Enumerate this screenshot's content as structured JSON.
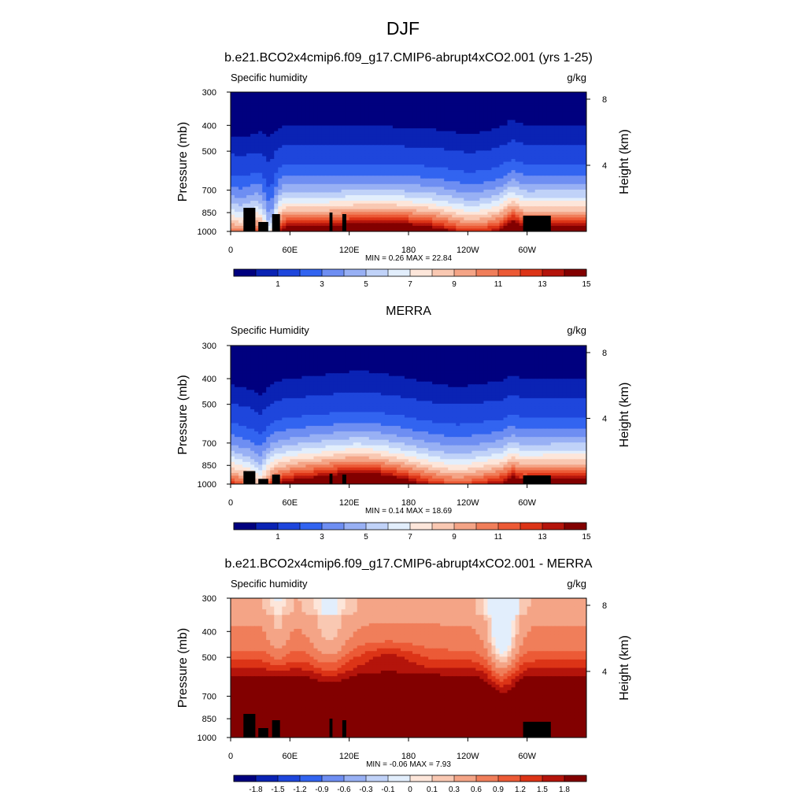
{
  "figure": {
    "title": "DJF"
  },
  "chart_data": [
    {
      "type": "heatmap",
      "title": "b.e21.BCO2x4cmip6.f09_g17.CMIP6-abrupt4xCO2.001 (yrs 1-25)",
      "left_label": "Specific humidity",
      "right_label": "g/kg",
      "ylabel": "Pressure (mb)",
      "ylabel_right": "Height (km)",
      "x_ticks": [
        "0",
        "60E",
        "120E",
        "180",
        "120W",
        "60W"
      ],
      "x_tick_values": [
        0,
        60,
        120,
        180,
        240,
        300
      ],
      "xlim": [
        0,
        360
      ],
      "y_ticks": [
        "300",
        "400",
        "500",
        "700",
        "850",
        "1000"
      ],
      "y_tick_values": [
        300,
        400,
        500,
        700,
        850,
        1000
      ],
      "ylim": [
        1000,
        300
      ],
      "right_ticks": [
        "8",
        "4"
      ],
      "right_tick_values": [
        8,
        4
      ],
      "stats": "MIN =   0.26  MAX =  22.84",
      "colorbar_labels": [
        "1",
        "3",
        "5",
        "7",
        "9",
        "11",
        "13",
        "15"
      ],
      "colorbar_values": [
        1,
        3,
        5,
        7,
        9,
        11,
        13,
        15
      ],
      "colorbar_levels": [
        0.5,
        1,
        2,
        3,
        4,
        5,
        6,
        7,
        8,
        9,
        10,
        11,
        12,
        13,
        14,
        15
      ],
      "scheme": "sequential"
    },
    {
      "type": "heatmap",
      "title": "MERRA",
      "left_label": "Specific Humidity",
      "right_label": "g/kg",
      "ylabel": "Pressure (mb)",
      "ylabel_right": "Height (km)",
      "x_ticks": [
        "0",
        "60E",
        "120E",
        "180",
        "120W",
        "60W"
      ],
      "x_tick_values": [
        0,
        60,
        120,
        180,
        240,
        300
      ],
      "xlim": [
        0,
        360
      ],
      "y_ticks": [
        "300",
        "400",
        "500",
        "700",
        "850",
        "1000"
      ],
      "y_tick_values": [
        300,
        400,
        500,
        700,
        850,
        1000
      ],
      "ylim": [
        1000,
        300
      ],
      "right_ticks": [
        "8",
        "4"
      ],
      "right_tick_values": [
        8,
        4
      ],
      "stats": "MIN =   0.14  MAX =  18.69",
      "colorbar_labels": [
        "1",
        "3",
        "5",
        "7",
        "9",
        "11",
        "13",
        "15"
      ],
      "colorbar_values": [
        1,
        3,
        5,
        7,
        9,
        11,
        13,
        15
      ],
      "colorbar_levels": [
        0.5,
        1,
        2,
        3,
        4,
        5,
        6,
        7,
        8,
        9,
        10,
        11,
        12,
        13,
        14,
        15
      ],
      "scheme": "sequential"
    },
    {
      "type": "heatmap",
      "title": "b.e21.BCO2x4cmip6.f09_g17.CMIP6-abrupt4xCO2.001 - MERRA",
      "left_label": "Specific humidity",
      "right_label": "g/kg",
      "ylabel": "Pressure (mb)",
      "ylabel_right": "Height (km)",
      "x_ticks": [
        "0",
        "60E",
        "120E",
        "180",
        "120W",
        "60W"
      ],
      "x_tick_values": [
        0,
        60,
        120,
        180,
        240,
        300
      ],
      "xlim": [
        0,
        360
      ],
      "y_ticks": [
        "300",
        "400",
        "500",
        "700",
        "850",
        "1000"
      ],
      "y_tick_values": [
        300,
        400,
        500,
        700,
        850,
        1000
      ],
      "ylim": [
        1000,
        300
      ],
      "right_ticks": [
        "8",
        "4"
      ],
      "right_tick_values": [
        8,
        4
      ],
      "stats": "MIN =  -0.06  MAX =   7.93",
      "colorbar_labels": [
        "-1.8",
        "-1.5",
        "-1.2",
        "-0.9",
        "-0.6",
        "-0.3",
        "-0.1",
        "0",
        "0.1",
        "0.3",
        "0.6",
        "0.9",
        "1.2",
        "1.5",
        "1.8"
      ],
      "colorbar_values": [
        -1.8,
        -1.5,
        -1.2,
        -0.9,
        -0.6,
        -0.3,
        -0.1,
        0,
        0.1,
        0.3,
        0.6,
        0.9,
        1.2,
        1.5,
        1.8
      ],
      "scheme": "difference"
    }
  ],
  "colorbar_colors": [
    "#00007f",
    "#0a23b4",
    "#1e46dc",
    "#3264f0",
    "#6e8ef2",
    "#98b0f4",
    "#c0d2f8",
    "#e2eefc",
    "#fde6da",
    "#f9c8b2",
    "#f4a486",
    "#f07e5a",
    "#ec5a36",
    "#dc3417",
    "#b4140b",
    "#820000"
  ]
}
